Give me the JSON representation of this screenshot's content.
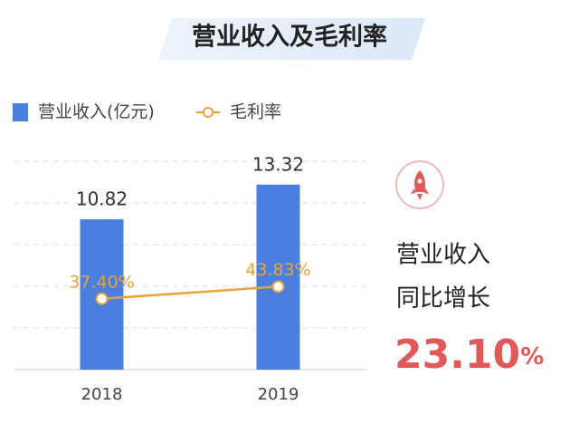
{
  "chart_data": {
    "type": "bar_line",
    "title": "营业收入及毛利率",
    "categories": [
      "2018",
      "2019"
    ],
    "series": [
      {
        "name": "营业收入(亿元)",
        "color": "#4a7fe0",
        "values": [
          10.82,
          13.32
        ]
      },
      {
        "name": "毛利率",
        "color": "#e8a23c",
        "values": [
          37.4,
          43.83
        ],
        "value_labels": [
          "37.40%",
          "43.83%"
        ],
        "axis": "y2"
      }
    ],
    "ylim": [
      0,
      15
    ],
    "y2lim": [
      0,
      110
    ],
    "grid": true,
    "legend": "top-left",
    "annotation": {
      "lines": [
        "营业收入",
        "同比增长"
      ],
      "value": "23.10",
      "unit": "%",
      "color": "#e05a5a"
    }
  }
}
